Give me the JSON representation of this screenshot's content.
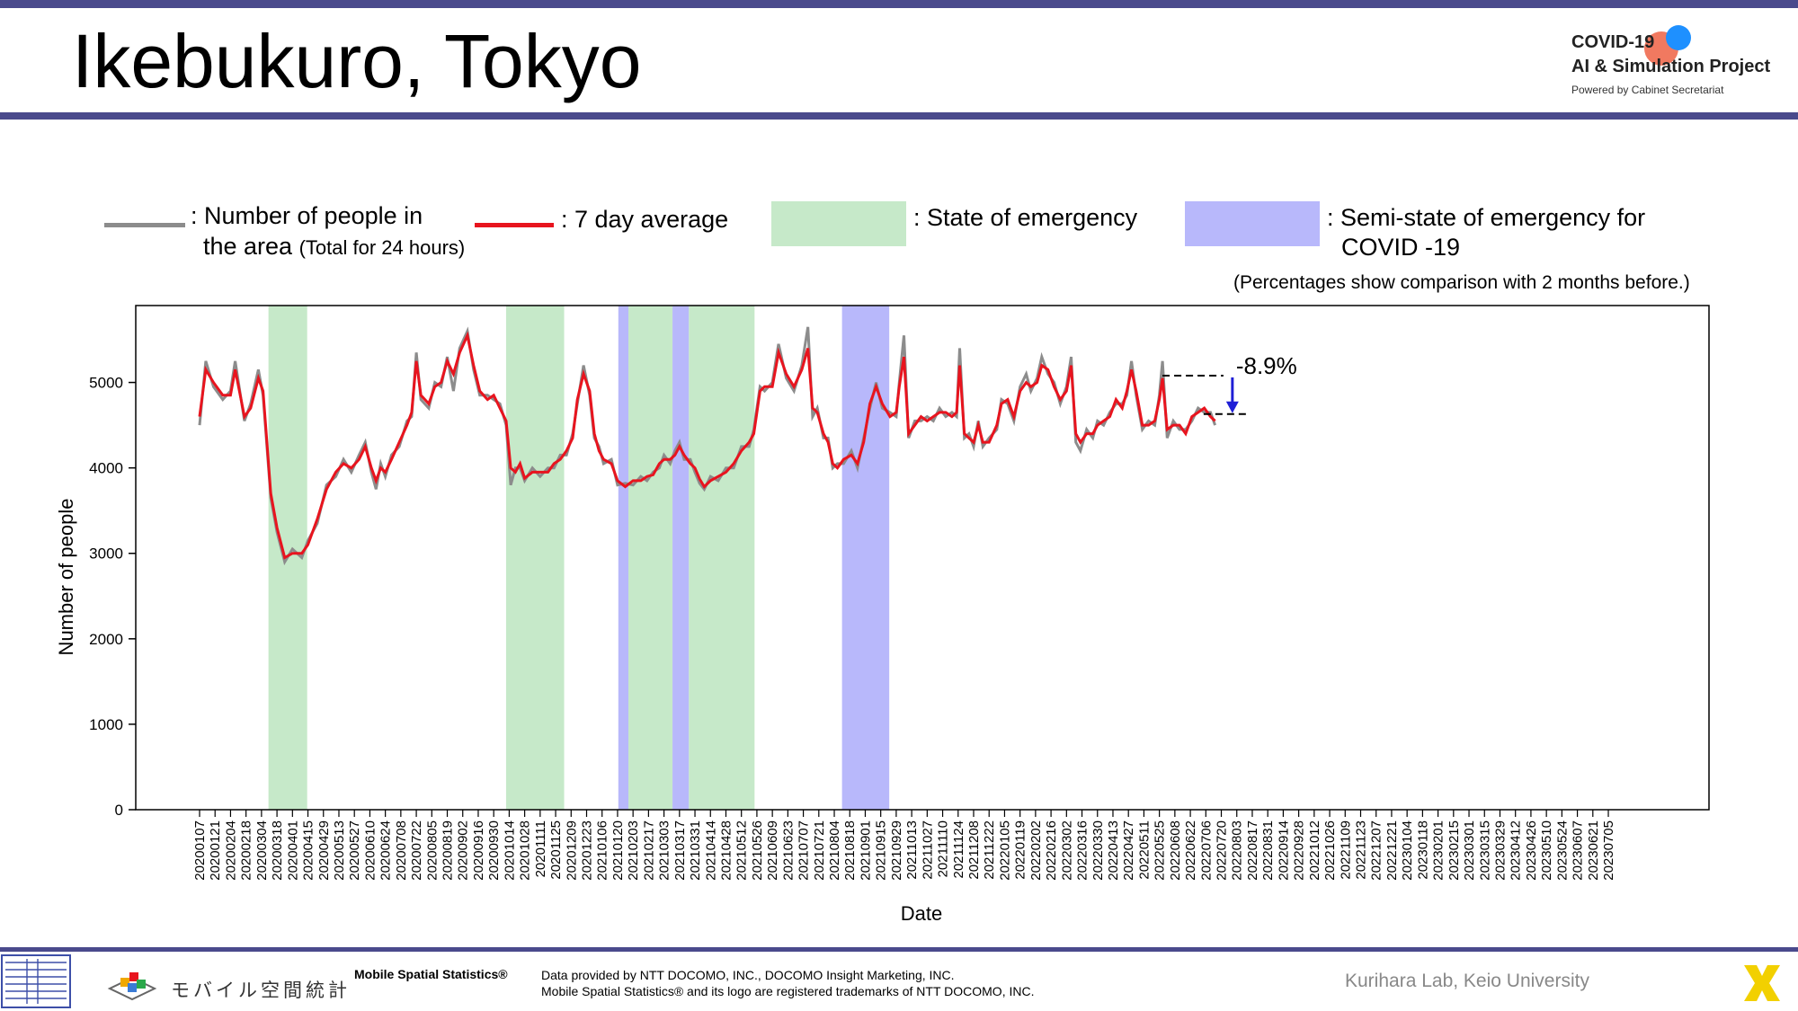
{
  "header": {
    "title": "Ikebukuro, Tokyo",
    "logo_line1": "COVID-19",
    "logo_line2": "AI & Simulation Project",
    "logo_line3": "Powered by Cabinet Secretariat"
  },
  "legend": {
    "people_line1": ": Number of people in",
    "people_line2": "the area",
    "people_note": "(Total for 24 hours)",
    "avg": ": 7 day average",
    "emergency": ": State of emergency",
    "semi_line1": ": Semi-state of emergency for",
    "semi_line2": "COVID -19",
    "note": "(Percentages show comparison with 2 months before.)"
  },
  "colors": {
    "raw": "#8c8c8c",
    "avg": "#e8141e",
    "emergency": "#c6e9c9",
    "semi": "#b8b8fb",
    "arrow": "#1f1fd6",
    "accent_bar": "#4a4a8c"
  },
  "chart_data": {
    "type": "line",
    "xlabel": "Date",
    "ylabel": "Number of people",
    "ylim": [
      0,
      5900
    ],
    "yticks": [
      0,
      1000,
      2000,
      3000,
      4000,
      5000
    ],
    "x_tick_labels": [
      "20200107",
      "20200121",
      "20200204",
      "20200218",
      "20200304",
      "20200318",
      "20200401",
      "20200415",
      "20200429",
      "20200513",
      "20200527",
      "20200610",
      "20200624",
      "20200708",
      "20200722",
      "20200805",
      "20200819",
      "20200902",
      "20200916",
      "20200930",
      "20201014",
      "20201028",
      "20201111",
      "20201125",
      "20201209",
      "20201223",
      "20210106",
      "20210120",
      "20210203",
      "20210217",
      "20210303",
      "20210317",
      "20210331",
      "20210414",
      "20210428",
      "20210512",
      "20210526",
      "20210609",
      "20210623",
      "20210707",
      "20210721",
      "20210804",
      "20210818",
      "20210901",
      "20210915",
      "20210929",
      "20211013",
      "20211027",
      "20211110",
      "20211124",
      "20211208",
      "20211222",
      "20220105",
      "20220119",
      "20220202",
      "20220216",
      "20220302",
      "20220316",
      "20220330",
      "20220413",
      "20220427",
      "20220511",
      "20220525",
      "20220608",
      "20220622",
      "20220706",
      "20220720",
      "20220803",
      "20220817",
      "20220831",
      "20220914",
      "20220928",
      "20221012",
      "20221026",
      "20221109",
      "20221123",
      "20221207",
      "20221221",
      "20230104",
      "20230118",
      "20230201",
      "20230215",
      "20230301",
      "20230315",
      "20230329",
      "20230412",
      "20230426",
      "20230510",
      "20230524",
      "20230607",
      "20230621",
      "20230705"
    ],
    "series_avg_name": "7 day average",
    "series_avg": [
      [
        0,
        4600
      ],
      [
        0.4,
        5150
      ],
      [
        0.9,
        5000
      ],
      [
        1.5,
        4850
      ],
      [
        2,
        4850
      ],
      [
        2.3,
        5150
      ],
      [
        2.9,
        4600
      ],
      [
        3.3,
        4700
      ],
      [
        3.8,
        5050
      ],
      [
        4.1,
        4900
      ],
      [
        4.6,
        3700
      ],
      [
        5,
        3300
      ],
      [
        5.5,
        2950
      ],
      [
        6,
        3000
      ],
      [
        6.6,
        3000
      ],
      [
        7,
        3100
      ],
      [
        7.6,
        3400
      ],
      [
        8.2,
        3750
      ],
      [
        8.8,
        3950
      ],
      [
        9.3,
        4050
      ],
      [
        9.8,
        4000
      ],
      [
        10.3,
        4100
      ],
      [
        10.7,
        4250
      ],
      [
        11.1,
        4000
      ],
      [
        11.4,
        3850
      ],
      [
        11.7,
        4000
      ],
      [
        12,
        3950
      ],
      [
        12.4,
        4100
      ],
      [
        12.9,
        4300
      ],
      [
        13.4,
        4500
      ],
      [
        13.7,
        4650
      ],
      [
        14,
        5250
      ],
      [
        14.3,
        4850
      ],
      [
        14.8,
        4750
      ],
      [
        15.2,
        4950
      ],
      [
        15.6,
        5000
      ],
      [
        16,
        5250
      ],
      [
        16.4,
        5100
      ],
      [
        16.8,
        5350
      ],
      [
        17.3,
        5550
      ],
      [
        17.7,
        5200
      ],
      [
        18.1,
        4900
      ],
      [
        18.6,
        4800
      ],
      [
        19,
        4850
      ],
      [
        19.4,
        4700
      ],
      [
        19.8,
        4550
      ],
      [
        20.1,
        4000
      ],
      [
        20.4,
        3950
      ],
      [
        20.7,
        4050
      ],
      [
        21,
        3880
      ],
      [
        21.5,
        3950
      ],
      [
        22,
        3950
      ],
      [
        22.5,
        3950
      ],
      [
        22.9,
        4050
      ],
      [
        23.3,
        4100
      ],
      [
        23.7,
        4200
      ],
      [
        24.1,
        4350
      ],
      [
        24.4,
        4800
      ],
      [
        24.8,
        5100
      ],
      [
        25.2,
        4900
      ],
      [
        25.5,
        4400
      ],
      [
        25.8,
        4200
      ],
      [
        26.1,
        4100
      ],
      [
        26.6,
        4050
      ],
      [
        27,
        3850
      ],
      [
        27.5,
        3780
      ],
      [
        28,
        3850
      ],
      [
        28.5,
        3850
      ],
      [
        28.9,
        3900
      ],
      [
        29.3,
        3920
      ],
      [
        29.7,
        4050
      ],
      [
        30,
        4100
      ],
      [
        30.4,
        4100
      ],
      [
        30.7,
        4150
      ],
      [
        31,
        4250
      ],
      [
        31.3,
        4150
      ],
      [
        31.7,
        4050
      ],
      [
        32,
        4000
      ],
      [
        32.3,
        3870
      ],
      [
        32.6,
        3780
      ],
      [
        33,
        3850
      ],
      [
        33.5,
        3900
      ],
      [
        34,
        3950
      ],
      [
        34.5,
        4050
      ],
      [
        35,
        4200
      ],
      [
        35.5,
        4300
      ],
      [
        35.8,
        4400
      ],
      [
        36.2,
        4900
      ],
      [
        36.5,
        4950
      ],
      [
        37,
        4950
      ],
      [
        37.4,
        5350
      ],
      [
        37.9,
        5100
      ],
      [
        38.4,
        4950
      ],
      [
        38.9,
        5150
      ],
      [
        39.3,
        5400
      ],
      [
        39.6,
        4700
      ],
      [
        39.9,
        4650
      ],
      [
        40.3,
        4400
      ],
      [
        40.6,
        4300
      ],
      [
        40.9,
        4050
      ],
      [
        41.2,
        4000
      ],
      [
        41.6,
        4100
      ],
      [
        42.1,
        4150
      ],
      [
        42.5,
        4050
      ],
      [
        42.9,
        4300
      ],
      [
        43.3,
        4750
      ],
      [
        43.7,
        4950
      ],
      [
        44.1,
        4750
      ],
      [
        44.6,
        4600
      ],
      [
        45,
        4650
      ],
      [
        45.2,
        4950
      ],
      [
        45.5,
        5300
      ],
      [
        45.8,
        4400
      ],
      [
        46.2,
        4500
      ],
      [
        46.6,
        4600
      ],
      [
        47,
        4550
      ],
      [
        47.4,
        4600
      ],
      [
        47.8,
        4650
      ],
      [
        48.2,
        4650
      ],
      [
        48.6,
        4600
      ],
      [
        48.9,
        4650
      ],
      [
        49.1,
        5200
      ],
      [
        49.4,
        4400
      ],
      [
        49.7,
        4350
      ],
      [
        50,
        4300
      ],
      [
        50.3,
        4500
      ],
      [
        50.6,
        4300
      ],
      [
        51,
        4300
      ],
      [
        51.5,
        4500
      ],
      [
        51.8,
        4750
      ],
      [
        52.2,
        4800
      ],
      [
        52.6,
        4600
      ],
      [
        53,
        4900
      ],
      [
        53.4,
        5000
      ],
      [
        53.7,
        4950
      ],
      [
        54.1,
        5000
      ],
      [
        54.4,
        5200
      ],
      [
        54.8,
        5150
      ],
      [
        55.2,
        4950
      ],
      [
        55.6,
        4800
      ],
      [
        56,
        4900
      ],
      [
        56.3,
        5200
      ],
      [
        56.6,
        4400
      ],
      [
        56.9,
        4300
      ],
      [
        57.3,
        4400
      ],
      [
        57.7,
        4400
      ],
      [
        58,
        4500
      ],
      [
        58.4,
        4550
      ],
      [
        58.8,
        4600
      ],
      [
        59.2,
        4800
      ],
      [
        59.6,
        4700
      ],
      [
        59.9,
        4900
      ],
      [
        60.2,
        5150
      ],
      [
        60.5,
        4900
      ],
      [
        60.9,
        4500
      ],
      [
        61.3,
        4500
      ],
      [
        61.7,
        4550
      ],
      [
        62,
        4800
      ],
      [
        62.2,
        5050
      ],
      [
        62.5,
        4450
      ],
      [
        62.9,
        4500
      ],
      [
        63.3,
        4500
      ],
      [
        63.7,
        4400
      ],
      [
        64.1,
        4600
      ],
      [
        64.5,
        4650
      ],
      [
        64.9,
        4700
      ],
      [
        65.3,
        4600
      ],
      [
        65.6,
        4550
      ]
    ],
    "series_raw_name": "Number of people in the area",
    "series_raw": [
      [
        0,
        4500
      ],
      [
        0.4,
        5250
      ],
      [
        0.9,
        4950
      ],
      [
        1.5,
        4800
      ],
      [
        2,
        4900
      ],
      [
        2.3,
        5250
      ],
      [
        2.9,
        4550
      ],
      [
        3.3,
        4750
      ],
      [
        3.8,
        5150
      ],
      [
        4.1,
        4850
      ],
      [
        4.6,
        3650
      ],
      [
        5,
        3250
      ],
      [
        5.5,
        2900
      ],
      [
        6,
        3050
      ],
      [
        6.6,
        2950
      ],
      [
        7,
        3150
      ],
      [
        7.6,
        3350
      ],
      [
        8.2,
        3800
      ],
      [
        8.8,
        3900
      ],
      [
        9.3,
        4100
      ],
      [
        9.8,
        3950
      ],
      [
        10.3,
        4150
      ],
      [
        10.7,
        4300
      ],
      [
        11.1,
        3950
      ],
      [
        11.4,
        3750
      ],
      [
        11.7,
        4050
      ],
      [
        12,
        3900
      ],
      [
        12.4,
        4150
      ],
      [
        12.9,
        4250
      ],
      [
        13.4,
        4550
      ],
      [
        13.7,
        4600
      ],
      [
        14,
        5350
      ],
      [
        14.3,
        4800
      ],
      [
        14.8,
        4700
      ],
      [
        15.2,
        5000
      ],
      [
        15.6,
        4950
      ],
      [
        16,
        5300
      ],
      [
        16.4,
        4900
      ],
      [
        16.8,
        5400
      ],
      [
        17.3,
        5600
      ],
      [
        17.7,
        5150
      ],
      [
        18.1,
        4850
      ],
      [
        18.6,
        4850
      ],
      [
        19,
        4800
      ],
      [
        19.4,
        4750
      ],
      [
        19.8,
        4500
      ],
      [
        20.1,
        3800
      ],
      [
        20.4,
        4000
      ],
      [
        20.7,
        4000
      ],
      [
        21,
        3850
      ],
      [
        21.5,
        4000
      ],
      [
        22,
        3900
      ],
      [
        22.5,
        4000
      ],
      [
        22.9,
        4000
      ],
      [
        23.3,
        4150
      ],
      [
        23.7,
        4150
      ],
      [
        24.1,
        4400
      ],
      [
        24.4,
        4750
      ],
      [
        24.8,
        5200
      ],
      [
        25.2,
        4850
      ],
      [
        25.5,
        4350
      ],
      [
        25.8,
        4250
      ],
      [
        26.1,
        4050
      ],
      [
        26.6,
        4100
      ],
      [
        27,
        3800
      ],
      [
        27.5,
        3820
      ],
      [
        28,
        3800
      ],
      [
        28.5,
        3900
      ],
      [
        28.9,
        3850
      ],
      [
        29.3,
        3950
      ],
      [
        29.7,
        4000
      ],
      [
        30,
        4150
      ],
      [
        30.4,
        4050
      ],
      [
        30.7,
        4200
      ],
      [
        31,
        4300
      ],
      [
        31.3,
        4100
      ],
      [
        31.7,
        4100
      ],
      [
        32,
        3950
      ],
      [
        32.3,
        3820
      ],
      [
        32.6,
        3750
      ],
      [
        33,
        3900
      ],
      [
        33.5,
        3850
      ],
      [
        34,
        4000
      ],
      [
        34.5,
        4000
      ],
      [
        35,
        4250
      ],
      [
        35.5,
        4250
      ],
      [
        35.8,
        4450
      ],
      [
        36.2,
        4950
      ],
      [
        36.5,
        4900
      ],
      [
        37,
        5000
      ],
      [
        37.4,
        5450
      ],
      [
        37.9,
        5050
      ],
      [
        38.4,
        4900
      ],
      [
        38.9,
        5200
      ],
      [
        39.3,
        5650
      ],
      [
        39.6,
        4600
      ],
      [
        39.9,
        4700
      ],
      [
        40.3,
        4350
      ],
      [
        40.6,
        4350
      ],
      [
        40.9,
        4000
      ],
      [
        41.2,
        4050
      ],
      [
        41.6,
        4050
      ],
      [
        42.1,
        4200
      ],
      [
        42.5,
        4000
      ],
      [
        42.9,
        4350
      ],
      [
        43.3,
        4700
      ],
      [
        43.7,
        5000
      ],
      [
        44.1,
        4700
      ],
      [
        44.6,
        4650
      ],
      [
        45,
        4600
      ],
      [
        45.2,
        5000
      ],
      [
        45.5,
        5550
      ],
      [
        45.8,
        4350
      ],
      [
        46.2,
        4550
      ],
      [
        46.6,
        4550
      ],
      [
        47,
        4600
      ],
      [
        47.4,
        4550
      ],
      [
        47.8,
        4700
      ],
      [
        48.2,
        4600
      ],
      [
        48.6,
        4650
      ],
      [
        48.9,
        4600
      ],
      [
        49.1,
        5400
      ],
      [
        49.4,
        4350
      ],
      [
        49.7,
        4400
      ],
      [
        50,
        4250
      ],
      [
        50.3,
        4550
      ],
      [
        50.6,
        4250
      ],
      [
        51,
        4350
      ],
      [
        51.5,
        4450
      ],
      [
        51.8,
        4800
      ],
      [
        52.2,
        4750
      ],
      [
        52.6,
        4550
      ],
      [
        53,
        4950
      ],
      [
        53.4,
        5100
      ],
      [
        53.7,
        4900
      ],
      [
        54.1,
        5050
      ],
      [
        54.4,
        5300
      ],
      [
        54.8,
        5100
      ],
      [
        55.2,
        5000
      ],
      [
        55.6,
        4750
      ],
      [
        56,
        4950
      ],
      [
        56.3,
        5300
      ],
      [
        56.6,
        4300
      ],
      [
        56.9,
        4200
      ],
      [
        57.3,
        4450
      ],
      [
        57.7,
        4350
      ],
      [
        58,
        4550
      ],
      [
        58.4,
        4500
      ],
      [
        58.8,
        4650
      ],
      [
        59.2,
        4750
      ],
      [
        59.6,
        4750
      ],
      [
        59.9,
        4850
      ],
      [
        60.2,
        5250
      ],
      [
        60.5,
        4850
      ],
      [
        60.9,
        4450
      ],
      [
        61.3,
        4550
      ],
      [
        61.7,
        4500
      ],
      [
        62,
        4850
      ],
      [
        62.2,
        5250
      ],
      [
        62.5,
        4350
      ],
      [
        62.9,
        4550
      ],
      [
        63.3,
        4450
      ],
      [
        63.7,
        4450
      ],
      [
        64.1,
        4550
      ],
      [
        64.5,
        4700
      ],
      [
        64.9,
        4650
      ],
      [
        65.3,
        4650
      ],
      [
        65.6,
        4500
      ]
    ],
    "emergency_periods": [
      [
        4.45,
        6.95
      ],
      [
        19.8,
        23.55
      ],
      [
        27.7,
        30.55
      ],
      [
        31.6,
        35.85
      ]
    ],
    "semi_periods": [
      [
        27.05,
        27.7
      ],
      [
        30.55,
        31.6
      ],
      [
        41.5,
        44.55
      ]
    ],
    "comparison": {
      "label": "-8.9%",
      "x_from": 62.2,
      "x_to": 66.6,
      "y_before": 5080,
      "y_after": 4630
    }
  },
  "footer": {
    "mobile_spatial": "Mobile Spatial Statistics®",
    "data_line1": "Data provided by NTT DOCOMO, INC., DOCOMO Insight Marketing, INC.",
    "data_line2": "Mobile Spatial Statistics® and its logo are registered trademarks of NTT DOCOMO, INC.",
    "jp_logo": "モバイル空間統計",
    "lab": "Kurihara Lab, Keio University"
  }
}
